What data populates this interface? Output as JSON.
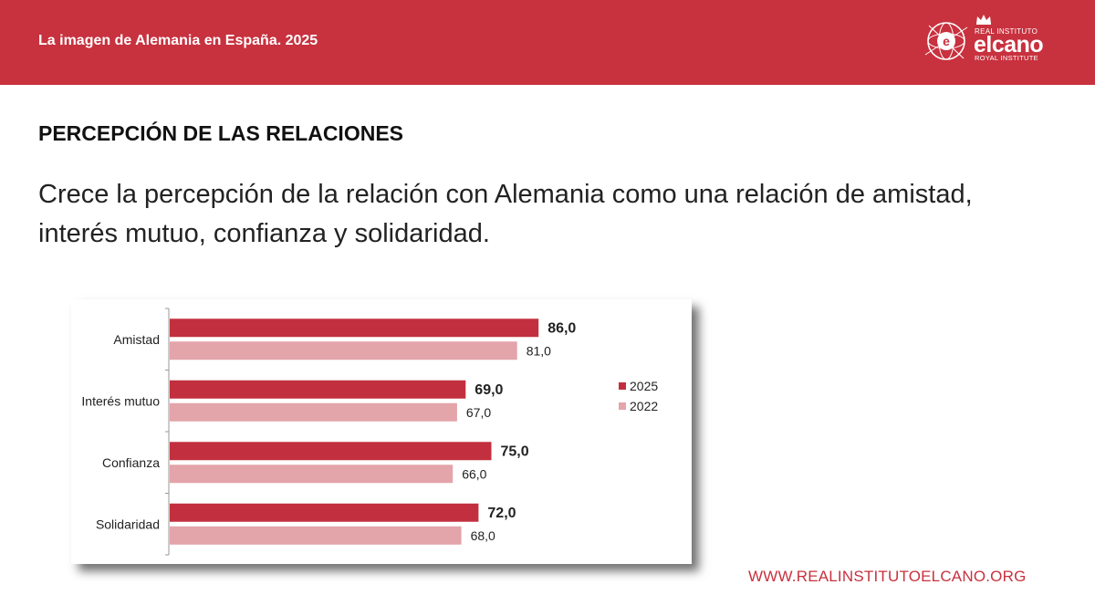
{
  "header": {
    "title": "La imagen de Alemania en España. 2025"
  },
  "logo": {
    "line1": "REAL INSTITUTO",
    "line2": "elcano",
    "line3": "ROYAL INSTITUTE",
    "mark_letter": "e"
  },
  "section_title": "PERCEPCIÓN DE LAS RELACIONES",
  "subtitle": "Crece la percepción de la relación con Alemania como una relación de amistad, interés mutuo, confianza y solidaridad.",
  "footer": {
    "url": "WWW.REALINSTITUTOELCANO.ORG"
  },
  "colors": {
    "brand": "#c8313e",
    "series_2025": "#c2303f",
    "series_2022": "#e3a4aa"
  },
  "chart_data": {
    "type": "bar",
    "orientation": "horizontal",
    "categories": [
      "Amistad",
      "Interés mutuo",
      "Confianza",
      "Solidaridad"
    ],
    "series": [
      {
        "name": "2025",
        "values": [
          86.0,
          69.0,
          75.0,
          72.0
        ],
        "labels": [
          "86,0",
          "69,0",
          "75,0",
          "72,0"
        ]
      },
      {
        "name": "2022",
        "values": [
          81.0,
          67.0,
          66.0,
          68.0
        ],
        "labels": [
          "81,0",
          "67,0",
          "66,0",
          "68,0"
        ]
      }
    ],
    "xlim": [
      0,
      100
    ],
    "legend": "right",
    "grid": false
  }
}
